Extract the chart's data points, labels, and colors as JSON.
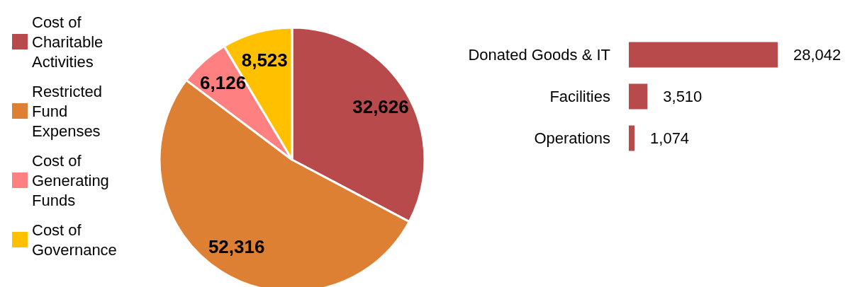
{
  "chart_data": [
    {
      "type": "pie",
      "categories": [
        "Cost of Charitable Activities",
        "Restricted Fund Expenses",
        "Cost of Generating Funds",
        "Cost of Governance"
      ],
      "values": [
        32626,
        52316,
        6126,
        8523
      ],
      "colors": [
        "#b94a4b",
        "#dd8033",
        "#ff8080",
        "#ffc000"
      ],
      "value_labels": [
        "32,626",
        "52,316",
        "6,126",
        "8,523"
      ],
      "legend": "left"
    },
    {
      "type": "bar",
      "orientation": "horizontal",
      "categories": [
        "Donated Goods & IT",
        "Facilities",
        "Operations"
      ],
      "values": [
        28042,
        3510,
        1074
      ],
      "color": "#b94a4b",
      "value_labels": [
        "28,042",
        "3,510",
        "1,074"
      ]
    }
  ]
}
